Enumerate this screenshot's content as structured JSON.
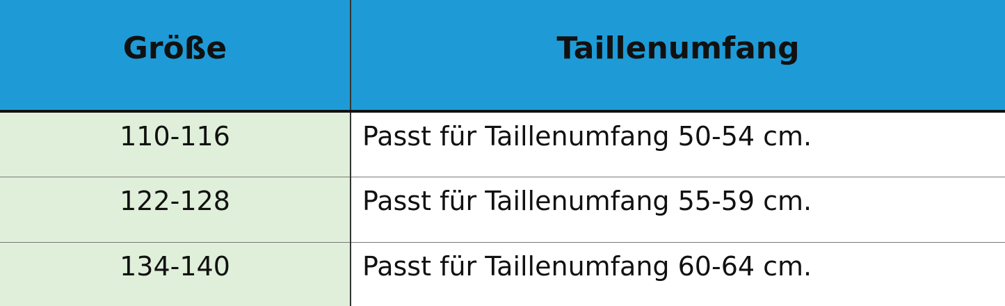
{
  "table": {
    "header": [
      "Größe",
      "Taillenumfang"
    ],
    "rows": [
      [
        "110-116",
        "Passt für Taillenumfang 50-54 cm."
      ],
      [
        "122-128",
        "Passt für Taillenumfang 55-59 cm."
      ],
      [
        "134-140",
        "Passt für Taillenumfang 60-64 cm."
      ]
    ]
  }
}
